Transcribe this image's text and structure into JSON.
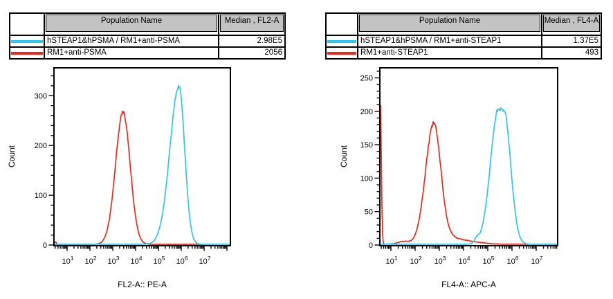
{
  "colors": {
    "cyan": "#2bc6f2",
    "red": "#f0281c",
    "header_bg": "#c3c3c3",
    "axis": "#000000",
    "background": "#ffffff"
  },
  "tables": [
    {
      "columns": {
        "swatch": "",
        "name": "Population Name",
        "value": "Median , FL2-A"
      },
      "rows": [
        {
          "swatch_color_key": "cyan",
          "name": "hSTEAP1&hPSMA / RM1+anti-PSMA",
          "value": "2.98E5"
        },
        {
          "swatch_color_key": "red",
          "name": "RM1+anti-PSMA",
          "value": "2056"
        }
      ]
    },
    {
      "columns": {
        "swatch": "",
        "name": "Population Name",
        "value": "Median , FL4-A"
      },
      "rows": [
        {
          "swatch_color_key": "cyan",
          "name": "hSTEAP1&hPSMA / RM1+anti-STEAP1",
          "value": "1.37E5"
        },
        {
          "swatch_color_key": "red",
          "name": "RM1+anti-STEAP1",
          "value": "493"
        }
      ]
    }
  ],
  "chart_data": [
    {
      "type": "line",
      "subtype": "flow-histogram-overlay",
      "xlabel": "FL2-A:: PE-A",
      "ylabel": "Count",
      "x_scale": "log10",
      "x_domain_exp": [
        0.424,
        8.152
      ],
      "x_major_tick_exponents": [
        1,
        2,
        3,
        4,
        5,
        6,
        7
      ],
      "y_domain": [
        0,
        356
      ],
      "y_major_ticks": [
        0,
        100,
        200,
        300
      ],
      "y_minor_step": 20,
      "grid": false,
      "legend": "table-above",
      "series": [
        {
          "name": "hSTEAP1&hPSMA / RM1+anti-PSMA",
          "color_key": "cyan",
          "median": "2.98E5",
          "peak_count": 318,
          "peak_x": "1.0E6 (10^5.9)",
          "baseline": 1.5,
          "baseline_range_exp": [
            0.424,
            8.152
          ],
          "components": [
            {
              "center": 5.9,
              "sigma_left": 0.4,
              "sigma_right": 0.25,
              "amp": 316,
              "plateau": 0
            }
          ]
        },
        {
          "name": "RM1+anti-PSMA",
          "color_key": "red",
          "median": "2056",
          "peak_count": 268,
          "peak_x": "2.8E3 (10^3.45)",
          "baseline": 1.4,
          "baseline_range_exp": [
            0.424,
            7.0
          ],
          "components": [
            {
              "center": 0.48,
              "sigma_left": 0.03,
              "sigma_right": 0.05,
              "amp": 5,
              "plateau": 0
            },
            {
              "center": 3.45,
              "sigma_left": 0.33,
              "sigma_right": 0.31,
              "amp": 266,
              "plateau": 0
            }
          ]
        }
      ]
    },
    {
      "type": "line",
      "subtype": "flow-histogram-overlay",
      "xlabel": "FL4-A:: APC-A",
      "ylabel": "Count",
      "x_scale": "log10",
      "x_domain_exp": [
        0.543,
        7.886
      ],
      "x_major_tick_exponents": [
        1,
        2,
        3,
        4,
        5,
        6,
        7
      ],
      "y_domain": [
        0,
        265
      ],
      "y_major_ticks": [
        0,
        50,
        100,
        150,
        200,
        250
      ],
      "y_minor_step": 10,
      "grid": false,
      "legend": "table-above",
      "series": [
        {
          "name": "hSTEAP1&hPSMA / RM1+anti-STEAP1",
          "color_key": "cyan",
          "median": "1.37E5",
          "peak_count": 204,
          "peak_x": "3.5E5 (10^5.55, flat top)",
          "baseline": 1.2,
          "baseline_range_exp": [
            0.543,
            7.886
          ],
          "components": [
            {
              "center": 4.55,
              "sigma_left": 0.1,
              "sigma_right": 0.1,
              "amp": 7,
              "plateau": 0
            },
            {
              "center": 5.55,
              "sigma_left": 0.33,
              "sigma_right": 0.28,
              "amp": 202,
              "plateau": 0.22
            }
          ]
        },
        {
          "name": "RM1+anti-STEAP1",
          "color_key": "red",
          "median": "493",
          "peak_count": 182,
          "peak_x": "5.9E2 (10^2.77), edge spike 210 at axis min",
          "baseline": 1.2,
          "baseline_range_exp": [
            0.543,
            7.886
          ],
          "components": [
            {
              "center": 0.565,
              "sigma_left": 0.03,
              "sigma_right": 0.04,
              "amp": 208,
              "plateau": 0
            },
            {
              "center": 1.5,
              "sigma_left": 0.22,
              "sigma_right": 0.25,
              "amp": 4,
              "plateau": 0
            },
            {
              "center": 2.77,
              "sigma_left": 0.34,
              "sigma_right": 0.3,
              "amp": 181,
              "plateau": 0
            },
            {
              "center": 3.55,
              "sigma_left": 0.2,
              "sigma_right": 0.5,
              "amp": 8,
              "plateau": 0
            },
            {
              "center": 4.5,
              "sigma_left": 0.55,
              "sigma_right": 0.45,
              "amp": 2.2,
              "plateau": 0
            }
          ]
        }
      ]
    }
  ]
}
